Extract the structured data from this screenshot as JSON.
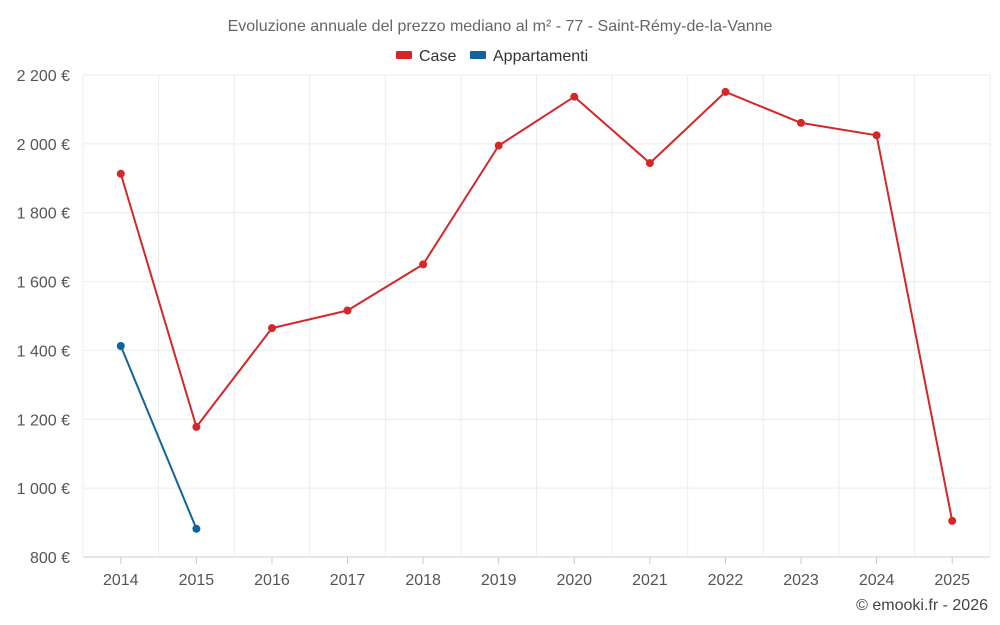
{
  "chart_data": {
    "type": "line",
    "title": "Evoluzione annuale del prezzo mediano al m² - 77 - Saint-Rémy-de-la-Vanne",
    "categories": [
      "2014",
      "2015",
      "2016",
      "2017",
      "2018",
      "2019",
      "2020",
      "2021",
      "2022",
      "2023",
      "2024",
      "2025"
    ],
    "ylim": [
      800,
      2200
    ],
    "yticks": [
      800,
      1000,
      1200,
      1400,
      1600,
      1800,
      2000,
      2200
    ],
    "ytick_labels": [
      "800 €",
      "1 000 €",
      "1 200 €",
      "1 400 €",
      "1 600 €",
      "1 800 €",
      "2 000 €",
      "2 200 €"
    ],
    "legend_position": "top-center",
    "grid": true,
    "series": [
      {
        "name": "Case",
        "color": "#d62728",
        "values": [
          1913,
          1178,
          1465,
          1516,
          1650,
          1995,
          2137,
          1944,
          2151,
          2061,
          2025,
          905
        ]
      },
      {
        "name": "Appartamenti",
        "color": "#0f64a0",
        "values": [
          1413,
          882,
          null,
          null,
          null,
          null,
          null,
          null,
          null,
          null,
          null,
          null
        ]
      }
    ]
  },
  "credit": "© emooki.fr - 2026"
}
